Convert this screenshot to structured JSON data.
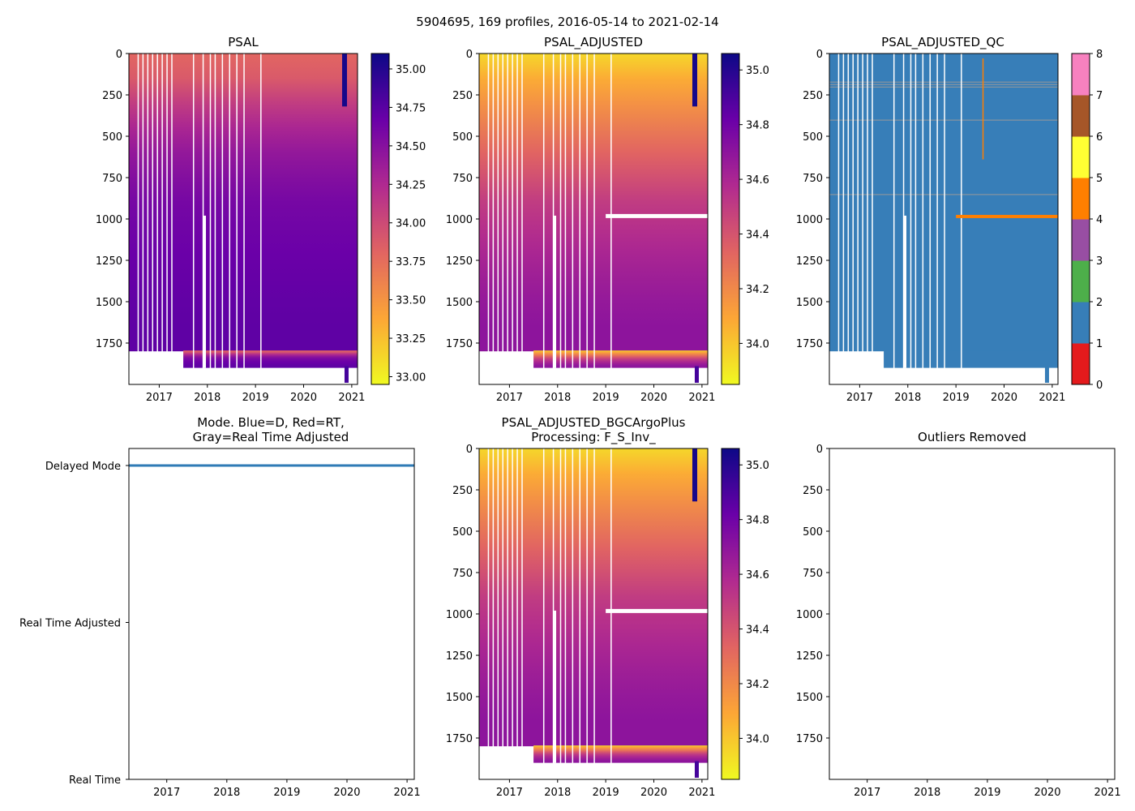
{
  "figure_title": "5904695, 169 profiles, 2016-05-14 to 2021-02-14",
  "colors": {
    "mode_line": "#2f7bb6",
    "plasma_stops": [
      "#f0f921",
      "#fca636",
      "#e16462",
      "#b12a90",
      "#6a00a8",
      "#0d0887"
    ],
    "qc_colors": [
      "#e41a1c",
      "#377eb8",
      "#4daf4a",
      "#984ea3",
      "#ff7f00",
      "#ffff33",
      "#a65628",
      "#f781bf",
      "#999999"
    ]
  },
  "chart_data": [
    {
      "id": "psal",
      "type": "heatmap",
      "title": "PSAL",
      "x_range": [
        2016.37,
        2021.12
      ],
      "x_ticks": [
        "2017",
        "2018",
        "2019",
        "2020",
        "2021"
      ],
      "x_tick_values": [
        2017,
        2018,
        2019,
        2020,
        2021
      ],
      "y_range": [
        0,
        2000
      ],
      "y_inverted": true,
      "y_ticks": [
        "0",
        "250",
        "500",
        "750",
        "1000",
        "1250",
        "1500",
        "1750"
      ],
      "y_tick_values": [
        0,
        250,
        500,
        750,
        1000,
        1250,
        1500,
        1750
      ],
      "colorbar": {
        "cmap": "plasma_r",
        "range": [
          32.95,
          35.1
        ],
        "ticks": [
          "33.00",
          "33.25",
          "33.50",
          "33.75",
          "34.00",
          "34.25",
          "34.50",
          "34.75",
          "35.00"
        ],
        "tick_values": [
          33.0,
          33.25,
          33.5,
          33.75,
          34.0,
          34.25,
          34.5,
          34.75,
          35.0
        ]
      },
      "depth_profile": [
        [
          0,
          33.8
        ],
        [
          200,
          33.9
        ],
        [
          400,
          34.2
        ],
        [
          700,
          34.45
        ],
        [
          1000,
          34.6
        ],
        [
          1400,
          34.68
        ],
        [
          1800,
          34.72
        ]
      ]
    },
    {
      "id": "psal_adjusted",
      "type": "heatmap",
      "title": "PSAL_ADJUSTED",
      "x_range": [
        2016.37,
        2021.12
      ],
      "x_ticks": [
        "2017",
        "2018",
        "2019",
        "2020",
        "2021"
      ],
      "x_tick_values": [
        2017,
        2018,
        2019,
        2020,
        2021
      ],
      "y_range": [
        0,
        2000
      ],
      "y_inverted": true,
      "y_ticks": [
        "0",
        "250",
        "500",
        "750",
        "1000",
        "1250",
        "1500",
        "1750"
      ],
      "y_tick_values": [
        0,
        250,
        500,
        750,
        1000,
        1250,
        1500,
        1750
      ],
      "colorbar": {
        "cmap": "plasma_r",
        "range": [
          33.85,
          35.06
        ],
        "ticks": [
          "34.0",
          "34.2",
          "34.4",
          "34.6",
          "34.8",
          "35.0"
        ],
        "tick_values": [
          34.0,
          34.2,
          34.4,
          34.6,
          34.8,
          35.0
        ]
      },
      "depth_profile": [
        [
          0,
          33.95
        ],
        [
          200,
          34.1
        ],
        [
          400,
          34.2
        ],
        [
          700,
          34.35
        ],
        [
          1000,
          34.5
        ],
        [
          1400,
          34.62
        ],
        [
          1800,
          34.7
        ]
      ]
    },
    {
      "id": "psal_adjusted_qc",
      "type": "heatmap",
      "title": "PSAL_ADJUSTED_QC",
      "x_range": [
        2016.37,
        2021.12
      ],
      "x_ticks": [
        "2017",
        "2018",
        "2019",
        "2020",
        "2021"
      ],
      "x_tick_values": [
        2017,
        2018,
        2019,
        2020,
        2021
      ],
      "y_range": [
        0,
        2000
      ],
      "y_inverted": true,
      "y_ticks": [
        "0",
        "250",
        "500",
        "750",
        "1000",
        "1250",
        "1500",
        "1750"
      ],
      "y_tick_values": [
        0,
        250,
        500,
        750,
        1000,
        1250,
        1500,
        1750
      ],
      "colorbar": {
        "cmap": "qc_discrete",
        "range": [
          0,
          8
        ],
        "ticks": [
          "0",
          "1",
          "2",
          "3",
          "4",
          "5",
          "6",
          "7",
          "8"
        ],
        "tick_values": [
          0,
          1,
          2,
          3,
          4,
          5,
          6,
          7,
          8
        ]
      },
      "dominant_qc": 1,
      "qc4_band": {
        "x_from": 2019.0,
        "x_to": 2021.12,
        "depth": 985
      }
    },
    {
      "id": "mode",
      "type": "line",
      "title_lines": [
        "Mode. Blue=D, Red=RT,",
        "Gray=Real Time Adjusted"
      ],
      "x_range": [
        2016.37,
        2021.12
      ],
      "x_ticks": [
        "2017",
        "2018",
        "2019",
        "2020",
        "2021"
      ],
      "x_tick_values": [
        2017,
        2018,
        2019,
        2020,
        2021
      ],
      "y_categories": [
        "Delayed Mode",
        "Real Time Adjusted",
        "Real Time"
      ],
      "y_values": [
        1,
        0.5,
        0
      ],
      "series": [
        {
          "name": "D",
          "x": [
            2016.37,
            2021.12
          ],
          "y": [
            1,
            1
          ]
        }
      ]
    },
    {
      "id": "bgc",
      "type": "heatmap",
      "title_lines": [
        "PSAL_ADJUSTED_BGCArgoPlus",
        "Processing: F_S_Inv_"
      ],
      "x_range": [
        2016.37,
        2021.12
      ],
      "x_ticks": [
        "2017",
        "2018",
        "2019",
        "2020",
        "2021"
      ],
      "x_tick_values": [
        2017,
        2018,
        2019,
        2020,
        2021
      ],
      "y_range": [
        0,
        2000
      ],
      "y_inverted": true,
      "y_ticks": [
        "0",
        "250",
        "500",
        "750",
        "1000",
        "1250",
        "1500",
        "1750"
      ],
      "y_tick_values": [
        0,
        250,
        500,
        750,
        1000,
        1250,
        1500,
        1750
      ],
      "colorbar": {
        "cmap": "plasma_r",
        "range": [
          33.85,
          35.06
        ],
        "ticks": [
          "34.0",
          "34.2",
          "34.4",
          "34.6",
          "34.8",
          "35.0"
        ],
        "tick_values": [
          34.0,
          34.2,
          34.4,
          34.6,
          34.8,
          35.0
        ]
      },
      "depth_profile": [
        [
          0,
          33.95
        ],
        [
          200,
          34.1
        ],
        [
          400,
          34.2
        ],
        [
          700,
          34.35
        ],
        [
          1000,
          34.5
        ],
        [
          1400,
          34.62
        ],
        [
          1800,
          34.7
        ]
      ]
    },
    {
      "id": "outliers",
      "type": "scatter",
      "title": "Outliers Removed",
      "x_range": [
        2016.37,
        2021.12
      ],
      "x_ticks": [
        "2017",
        "2018",
        "2019",
        "2020",
        "2021"
      ],
      "x_tick_values": [
        2017,
        2018,
        2019,
        2020,
        2021
      ],
      "y_range": [
        0,
        2000
      ],
      "y_inverted": true,
      "y_ticks": [
        "0",
        "250",
        "500",
        "750",
        "1000",
        "1250",
        "1500",
        "1750"
      ],
      "y_tick_values": [
        0,
        250,
        500,
        750,
        1000,
        1250,
        1500,
        1750
      ],
      "points": []
    }
  ],
  "profile_gaps": [
    2016.55,
    2016.65,
    2016.75,
    2016.85,
    2016.95,
    2017.05,
    2017.15,
    2017.25,
    2017.7,
    2017.9,
    2018.05,
    2018.15,
    2018.3,
    2018.45,
    2018.6,
    2018.75,
    2019.1
  ]
}
